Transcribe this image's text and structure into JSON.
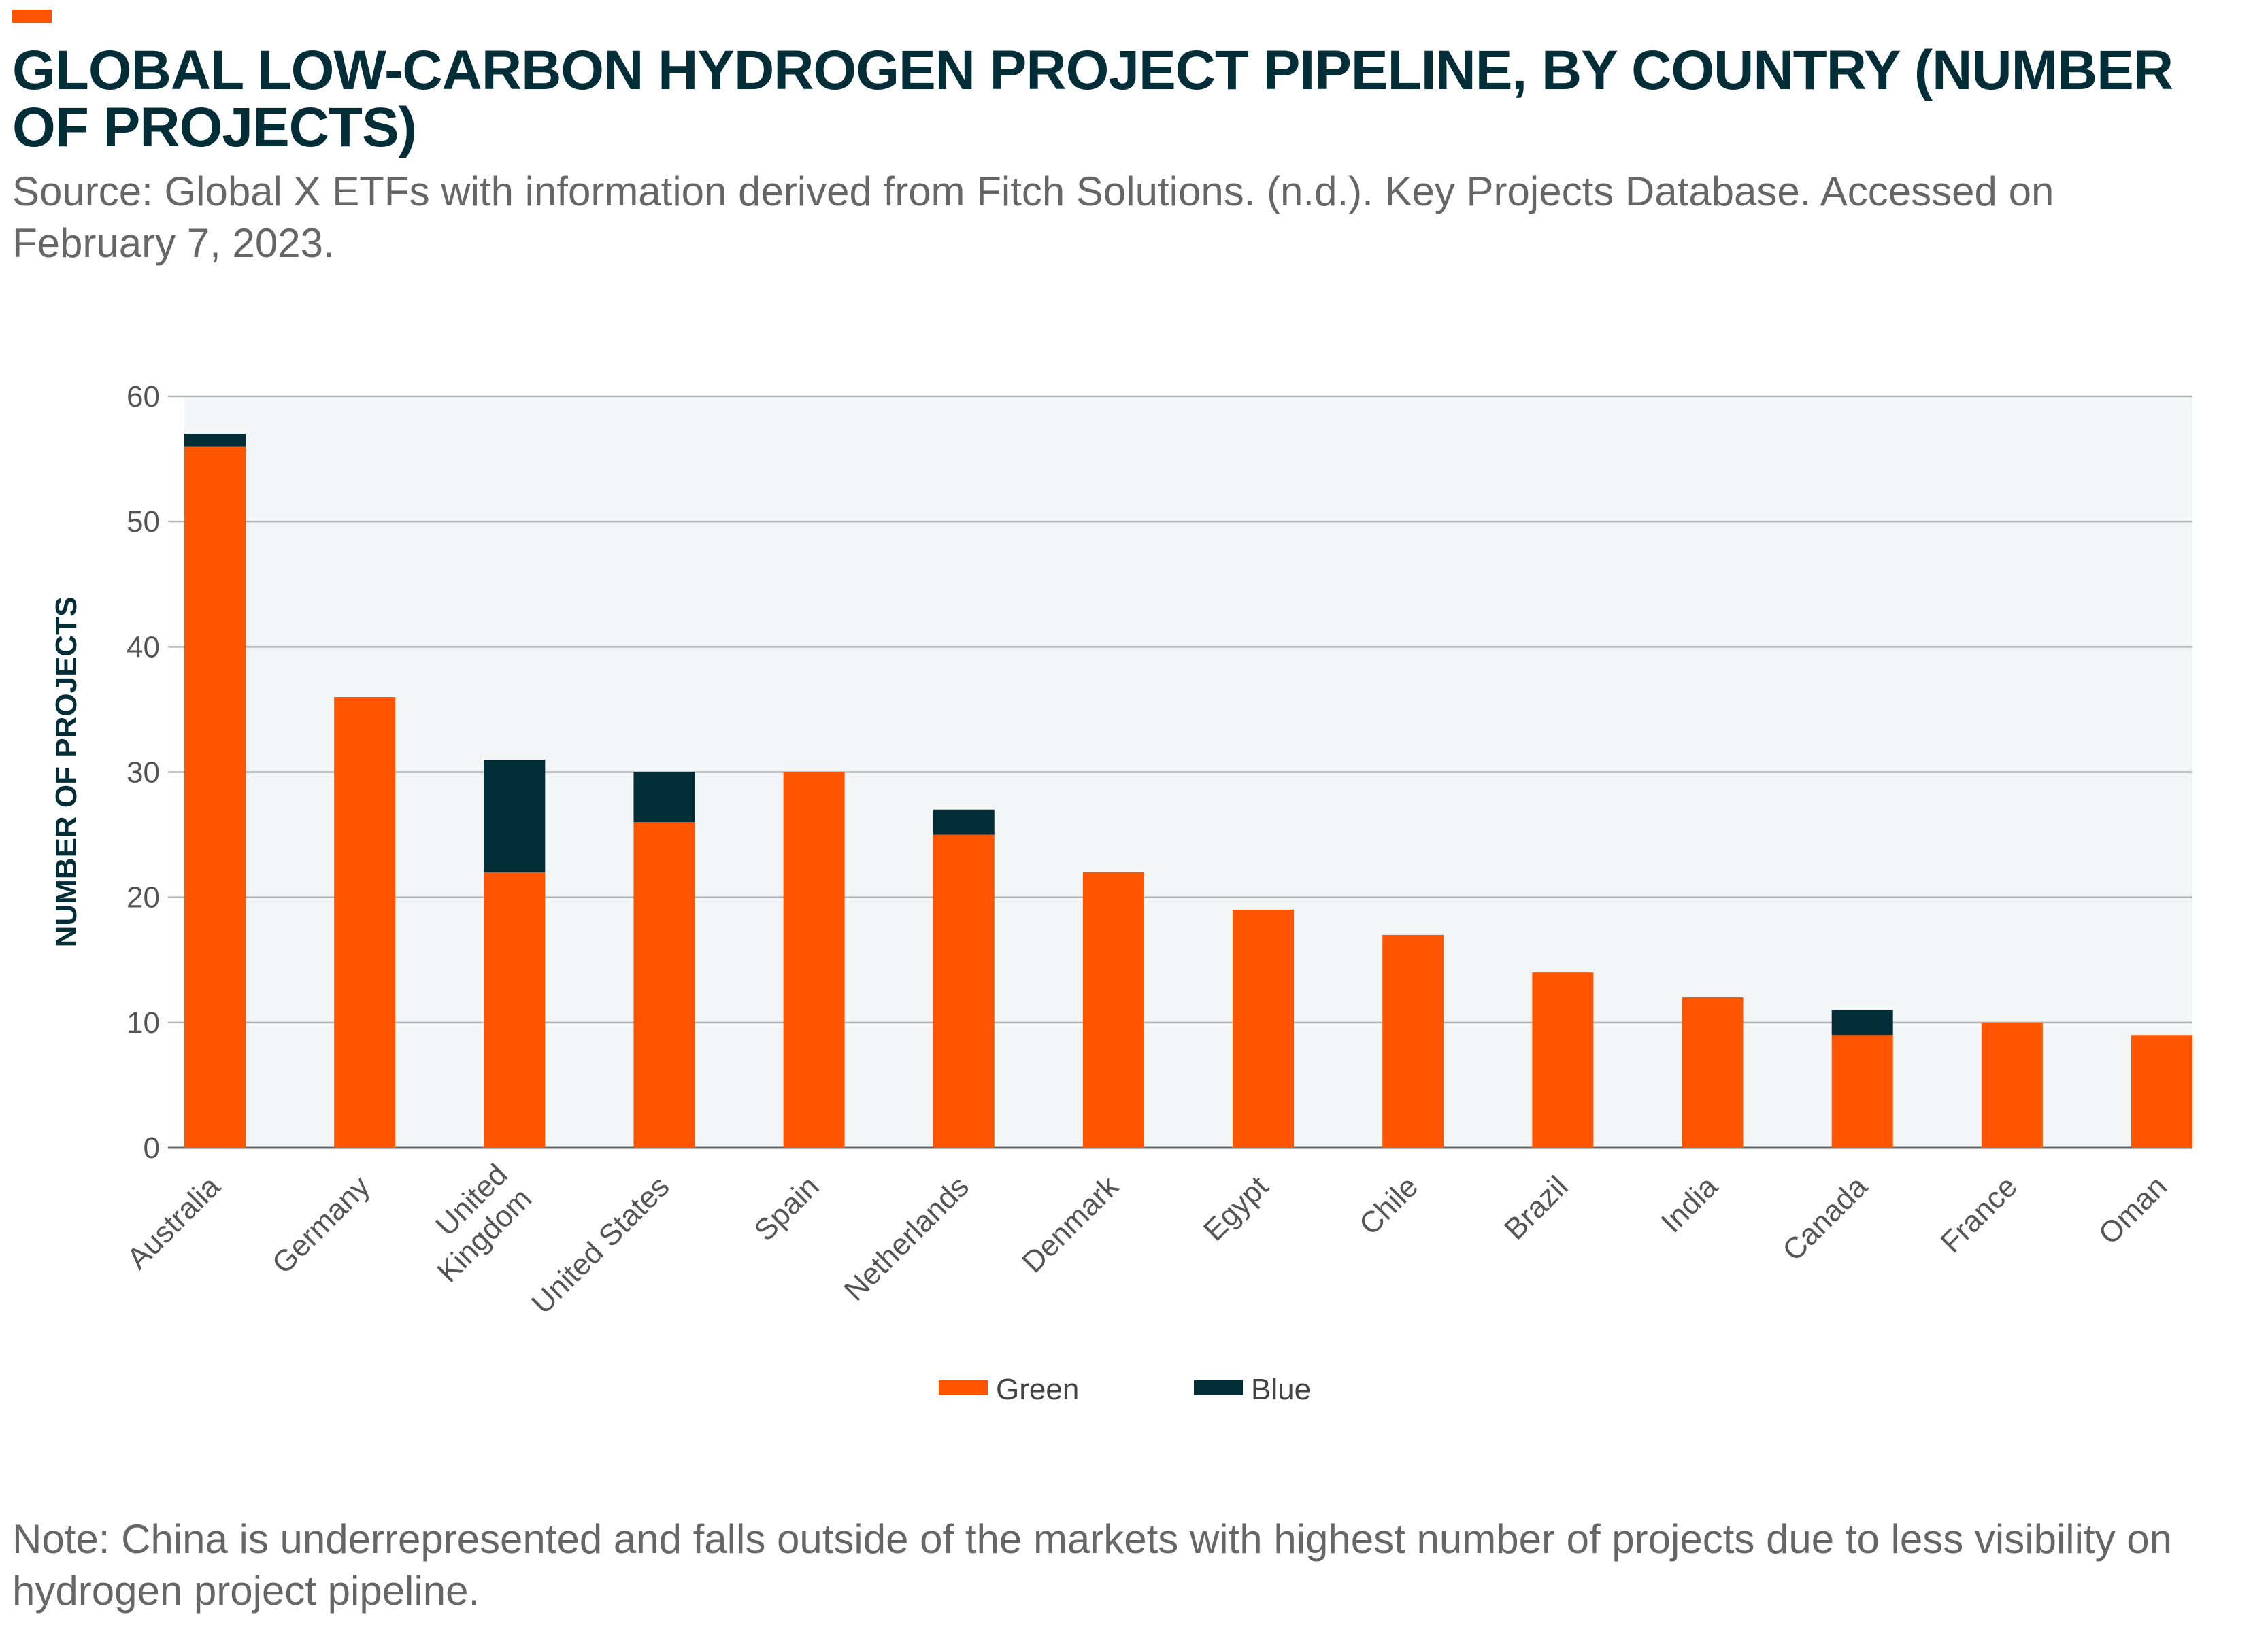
{
  "title": "GLOBAL LOW-CARBON HYDROGEN PROJECT PIPELINE, BY COUNTRY (NUMBER OF PROJECTS)",
  "source": "Source: Global X ETFs with information derived from Fitch Solutions. (n.d.). Key Projects Database. Accessed on February 7, 2023.",
  "note": "Note: China is underrepresented and falls outside of the markets with highest number of projects due to less visibility on hydrogen project pipeline.",
  "chart_data": {
    "type": "bar",
    "stacked": true,
    "title": "GLOBAL LOW-CARBON HYDROGEN PROJECT PIPELINE, BY COUNTRY (NUMBER OF PROJECTS)",
    "xlabel": "",
    "ylabel": "NUMBER OF PROJECTS",
    "ylim": [
      0,
      60
    ],
    "yticks": [
      0,
      10,
      20,
      30,
      40,
      50,
      60
    ],
    "grid": true,
    "legend_position": "bottom",
    "categories": [
      "Australia",
      "Germany",
      "United Kingdom",
      "United States",
      "Spain",
      "Netherlands",
      "Denmark",
      "Egypt",
      "Chile",
      "Brazil",
      "India",
      "Canada",
      "France",
      "Oman"
    ],
    "series": [
      {
        "name": "Green",
        "color": "#ff5500",
        "values": [
          56,
          36,
          22,
          26,
          30,
          25,
          22,
          19,
          17,
          14,
          12,
          9,
          10,
          9
        ]
      },
      {
        "name": "Blue",
        "color": "#032e38",
        "values": [
          1,
          0,
          9,
          4,
          0,
          2,
          0,
          0,
          0,
          0,
          0,
          2,
          0,
          0
        ]
      }
    ]
  }
}
